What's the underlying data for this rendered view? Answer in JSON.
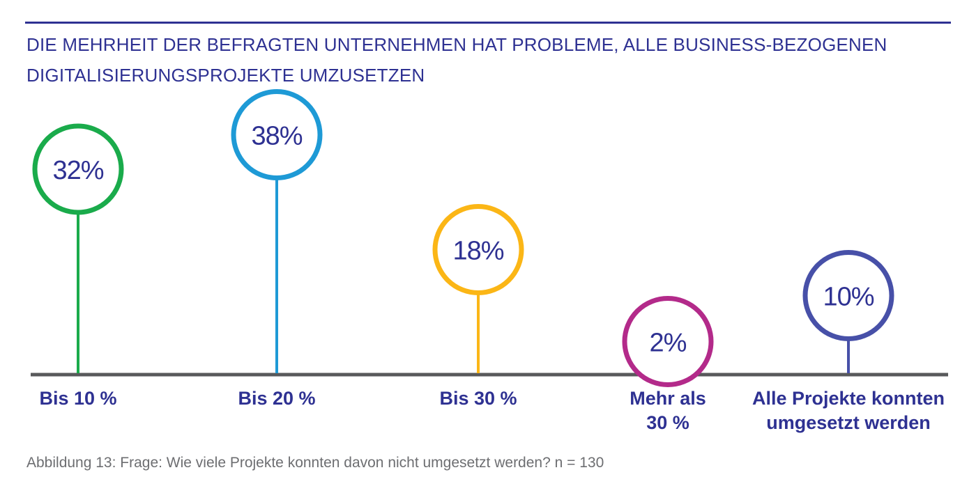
{
  "chart_data": {
    "type": "lollipop",
    "title": "DIE MEHRHEIT DER BEFRAGTEN UNTERNEHMEN HAT PROBLEME, ALLE BUSINESS-BEZOGENEN DIGITALISIERUNGSPROJEKTE UMZUSETZEN",
    "categories": [
      [
        "Bis 10 %"
      ],
      [
        "Bis 20 %"
      ],
      [
        "Bis 30 %"
      ],
      [
        "Mehr als",
        "30 %"
      ],
      [
        "Alle Projekte konnten",
        "umgesetzt werden"
      ]
    ],
    "values": [
      32,
      38,
      18,
      2,
      10
    ],
    "value_labels": [
      "32%",
      "38%",
      "18%",
      "2%",
      "10%"
    ],
    "colors": [
      "#1aab4b",
      "#1e9ad6",
      "#fbb616",
      "#b32a8a",
      "#4750a8"
    ],
    "value_unit": "%"
  },
  "caption": "Abbildung 13: Frage: Wie viele Projekte konnten davon nicht umgesetzt werden? n = 130",
  "colors": {
    "title": "#2e3192",
    "text": "#2e3192",
    "baseline": "#58595b",
    "caption": "#6d6e71"
  }
}
